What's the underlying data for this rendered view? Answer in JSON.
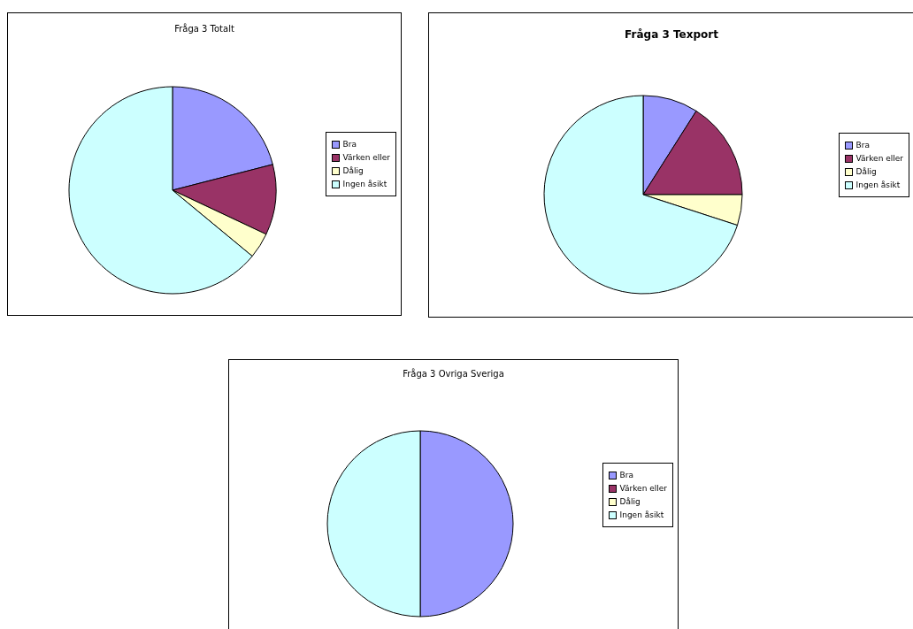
{
  "chart_data": [
    {
      "type": "pie",
      "title": "Fråga 3 Totalt",
      "categories": [
        "Bra",
        "Värken eller",
        "Dålig",
        "Ingen åsikt"
      ],
      "values": [
        21,
        11,
        4,
        64
      ],
      "colors": [
        "#9999ff",
        "#993366",
        "#ffffcc",
        "#ccffff"
      ],
      "legend": "right"
    },
    {
      "type": "pie",
      "title": "Fråga 3 Texport",
      "categories": [
        "Bra",
        "Värken eller",
        "Dålig",
        "Ingen åsikt"
      ],
      "values": [
        9,
        16,
        5,
        70
      ],
      "colors": [
        "#9999ff",
        "#993366",
        "#ffffcc",
        "#ccffff"
      ],
      "legend": "right"
    },
    {
      "type": "pie",
      "title": "Fråga 3 Ovriga Sveriga",
      "categories": [
        "Bra",
        "Värken eller",
        "Dålig",
        "Ingen åsikt"
      ],
      "values": [
        50,
        0,
        0,
        50
      ],
      "colors": [
        "#9999ff",
        "#993366",
        "#ffffcc",
        "#ccffff"
      ],
      "legend": "right"
    }
  ]
}
